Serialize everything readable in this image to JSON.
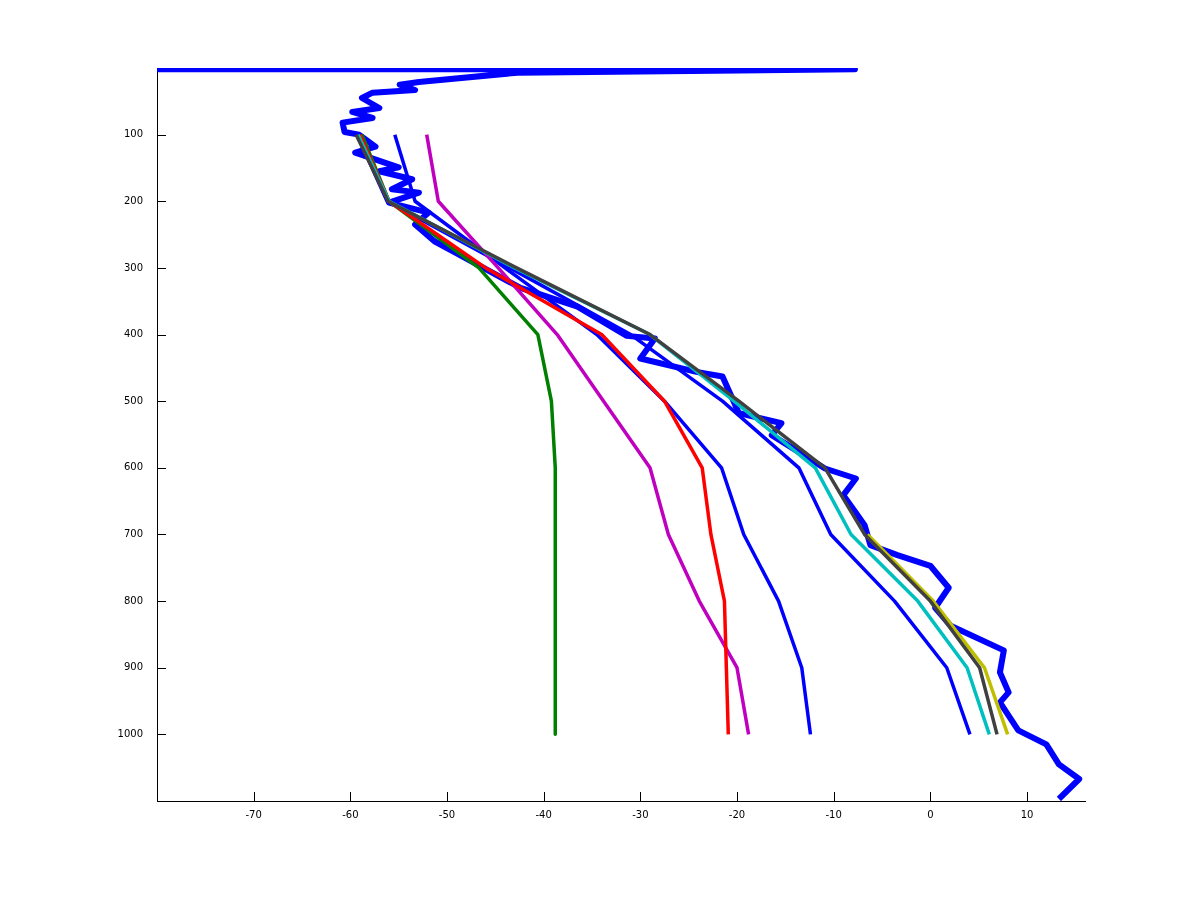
{
  "chart_data": {
    "type": "line",
    "xlim": [
      -80,
      16
    ],
    "ylim": [
      1100,
      0
    ],
    "xticks": [
      -70,
      -60,
      -50,
      -40,
      -30,
      -20,
      -10,
      0,
      10
    ],
    "yticks": [
      100,
      200,
      300,
      400,
      500,
      600,
      700,
      800,
      900,
      1000
    ],
    "grid": false,
    "legend": false,
    "marker": "none",
    "line_style": "solid",
    "series": [
      {
        "color": "#0000ff",
        "x": [
          -80,
          -7.8,
          -42.7,
          -52.9,
          -54.9,
          -53.3,
          -57.7,
          -58.8,
          -57,
          -59.8,
          -57.7,
          -60.8,
          -60.6,
          -59.1,
          -57.4,
          -59.5,
          -55,
          -57,
          -53.6,
          -55.7,
          -52.9,
          -56,
          -51.9,
          -53.3,
          -51.3,
          -42.4,
          -36.5,
          -31.4,
          -28.5,
          -30,
          -24.2,
          -21.5,
          -19.8,
          -15.4,
          -16.4,
          -10.9,
          -7.7,
          -9,
          -6.8,
          -6.2,
          -3.4,
          0,
          1.9,
          0.5,
          2.1,
          7.6,
          7.2,
          8.1,
          7.2,
          9.1,
          12,
          13.3,
          15.4,
          13.3
        ],
        "values": [
          2,
          2,
          7,
          21,
          25,
          33,
          37,
          45,
          60,
          66,
          75,
          82,
          96,
          100,
          118,
          127,
          149,
          155,
          167,
          182,
          187,
          202,
          217,
          235,
          260,
          330,
          358,
          402,
          406,
          436,
          456,
          463,
          518,
          533,
          551,
          601,
          616,
          641,
          686,
          716,
          731,
          747,
          780,
          810,
          837,
          874,
          907,
          937,
          952,
          994,
          1015,
          1045,
          1067,
          1097
        ]
      },
      {
        "color": "#0000ff",
        "x": [
          -55.4,
          -53.3,
          -44,
          -34.5,
          -27.5,
          -21.6,
          -19.3,
          -15.7,
          -13.3,
          -12.4
        ],
        "values": [
          100,
          200,
          300,
          400,
          500,
          600,
          700,
          800,
          900,
          1000
        ]
      },
      {
        "color": "#0000ff",
        "x": [
          -59.3,
          -56.2,
          -43.5,
          -31,
          -21.5,
          -13.6,
          -10.3,
          -3.7,
          1.7,
          4.1
        ],
        "values": [
          100,
          200,
          300,
          400,
          500,
          600,
          700,
          800,
          900,
          1000
        ]
      },
      {
        "color": "#007f00",
        "x": [
          -58.8,
          -56,
          -46.7,
          -40.6,
          -39.2,
          -38.8,
          -38.8,
          -38.8,
          -38.8,
          -38.8
        ],
        "values": [
          100,
          200,
          300,
          400,
          500,
          600,
          700,
          800,
          900,
          1000
        ]
      },
      {
        "color": "#bf00bf",
        "x": [
          -52.1,
          -50.9,
          -44.7,
          -38.6,
          -33.8,
          -29,
          -27.1,
          -23.9,
          -20,
          -18.8
        ],
        "values": [
          100,
          200,
          300,
          400,
          500,
          600,
          700,
          800,
          900,
          1000
        ]
      },
      {
        "color": "#ff0000",
        "x": [
          -59,
          -56,
          -46,
          -34,
          -27.5,
          -23.6,
          -22.7,
          -21.3,
          -21.1,
          -20.9
        ],
        "values": [
          100,
          200,
          300,
          400,
          500,
          600,
          700,
          800,
          900,
          1000
        ]
      },
      {
        "color": "#00bfbf",
        "x": [
          -59.2,
          -56,
          -43,
          -29,
          -20.3,
          -11.9,
          -8.2,
          -1.3,
          3.8,
          6.1
        ],
        "values": [
          100,
          200,
          300,
          400,
          500,
          600,
          700,
          800,
          900,
          1000
        ]
      },
      {
        "color": "#bfbf00",
        "x": [
          -6.5,
          0.3,
          5.6,
          8
        ],
        "values": [
          700,
          800,
          900,
          1000
        ]
      },
      {
        "color": "#404040",
        "x": [
          -59.4,
          -56.1,
          -42.8,
          -29,
          -19.8,
          -10.9,
          -6.8,
          0,
          5.1,
          6.9
        ],
        "values": [
          100,
          200,
          300,
          400,
          500,
          600,
          700,
          800,
          900,
          1000
        ]
      }
    ]
  }
}
